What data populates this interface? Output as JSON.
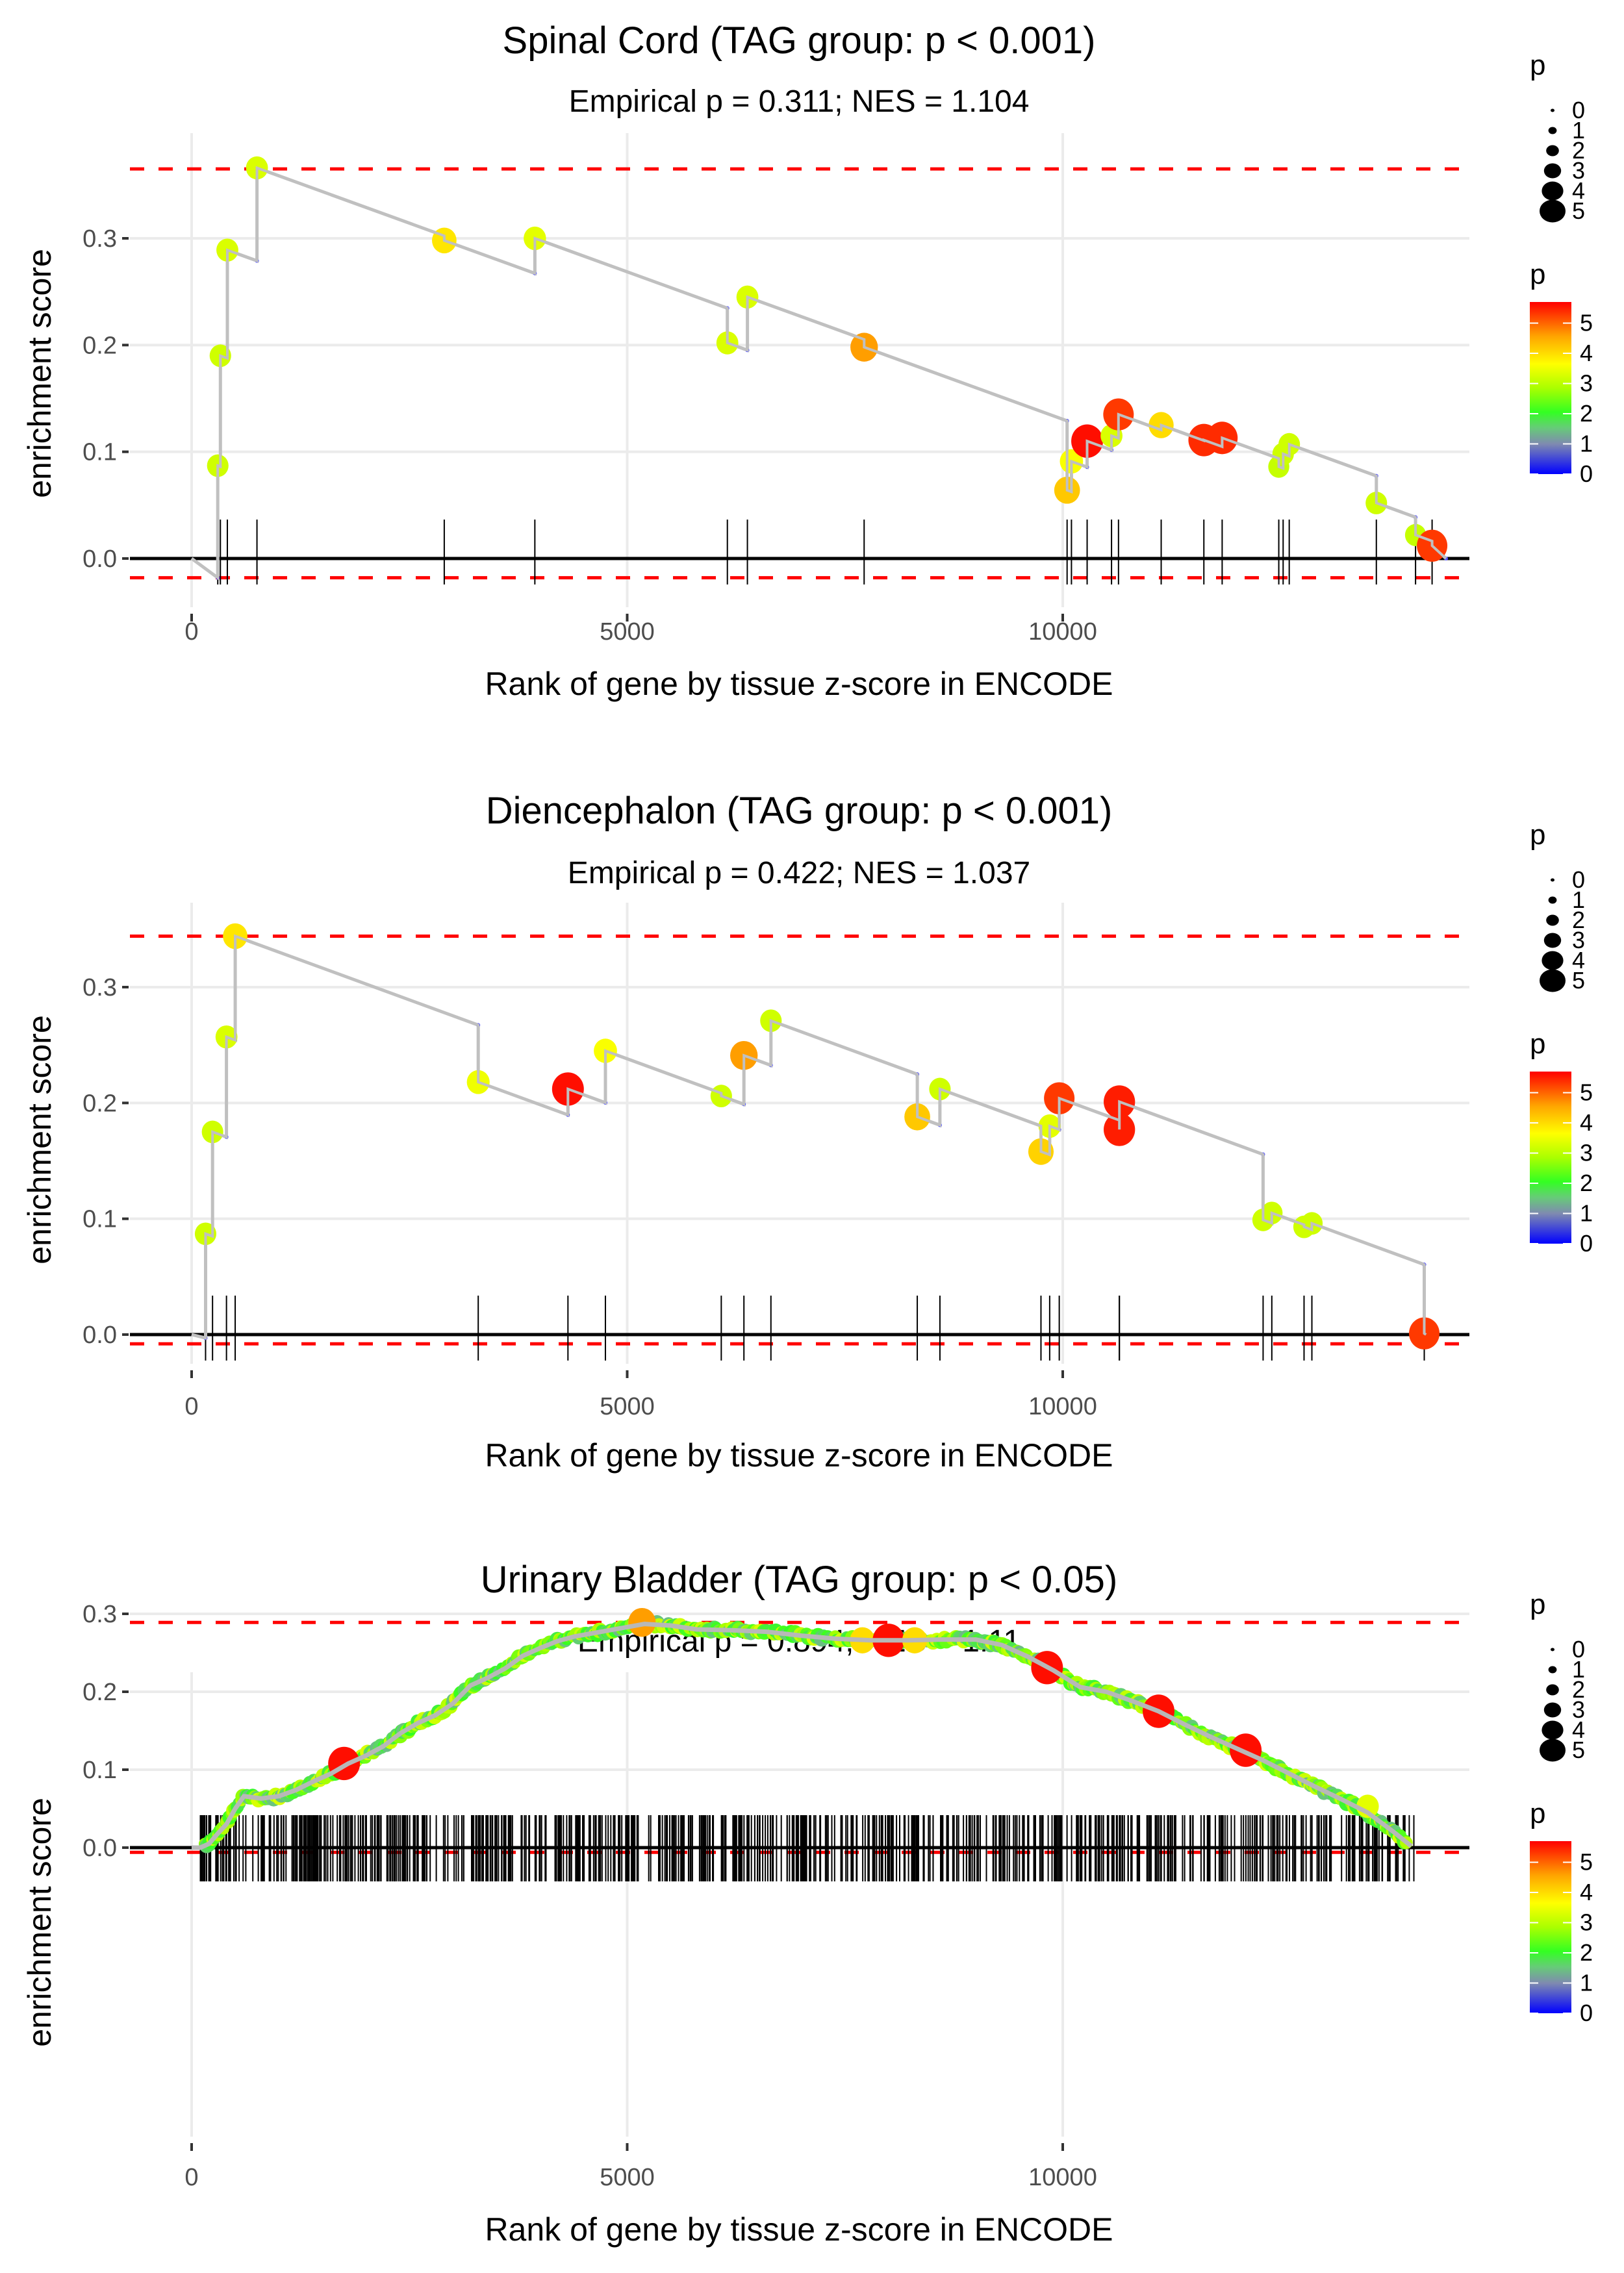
{
  "chart_data": [
    {
      "type": "scatter",
      "title": "Spinal Cord (TAG group: p < 0.001)",
      "subtitle": "Empirical p = 0.311; NES = 1.104",
      "xlabel": "Rank of gene by tissue z-score in ENCODE",
      "ylabel": "enrichment score",
      "xlim": [
        -750,
        14500
      ],
      "ylim": [
        -0.035,
        0.375
      ],
      "xticks": [
        0,
        5000,
        10000
      ],
      "xtick_labels": [
        "0",
        "5000",
        "10000"
      ],
      "yticks": [
        0.0,
        0.1,
        0.2,
        0.3
      ],
      "ytick_labels": [
        "0.0",
        "0.1",
        "0.2",
        "0.3"
      ],
      "grid": true,
      "upper_threshold": 0.365,
      "lower_threshold": -0.018,
      "hits": [
        {
          "rank": 300,
          "es": 0.087,
          "p": 3.2
        },
        {
          "rank": 330,
          "es": 0.19,
          "p": 3.2
        },
        {
          "rank": 410,
          "es": 0.289,
          "p": 3.3
        },
        {
          "rank": 750,
          "es": 0.366,
          "p": 3.3
        },
        {
          "rank": 2900,
          "es": 0.298,
          "p": 3.9
        },
        {
          "rank": 3940,
          "es": 0.3,
          "p": 3.4
        },
        {
          "rank": 6150,
          "es": 0.202,
          "p": 3.3
        },
        {
          "rank": 6380,
          "es": 0.245,
          "p": 3.3
        },
        {
          "rank": 7720,
          "es": 0.198,
          "p": 4.6
        },
        {
          "rank": 10050,
          "es": 0.064,
          "p": 4.2
        },
        {
          "rank": 10100,
          "es": 0.091,
          "p": 3.6
        },
        {
          "rank": 10280,
          "es": 0.11,
          "p": 5.6
        },
        {
          "rank": 10560,
          "es": 0.115,
          "p": 3.3
        },
        {
          "rank": 10640,
          "es": 0.135,
          "p": 5.3
        },
        {
          "rank": 11130,
          "es": 0.125,
          "p": 4.0
        },
        {
          "rank": 11620,
          "es": 0.111,
          "p": 5.4
        },
        {
          "rank": 11830,
          "es": 0.113,
          "p": 5.4
        },
        {
          "rank": 12480,
          "es": 0.086,
          "p": 3.1
        },
        {
          "rank": 12530,
          "es": 0.098,
          "p": 3.2
        },
        {
          "rank": 12600,
          "es": 0.107,
          "p": 3.2
        },
        {
          "rank": 13600,
          "es": 0.052,
          "p": 3.2
        },
        {
          "rank": 14050,
          "es": 0.022,
          "p": 3.1
        },
        {
          "rank": 14240,
          "es": 0.012,
          "p": 5.3
        }
      ],
      "end_rank": 14400
    },
    {
      "type": "scatter",
      "title": "Diencephalon (TAG group: p < 0.001)",
      "subtitle": "Empirical p = 0.422; NES = 1.037",
      "xlabel": "Rank of gene by tissue z-score in ENCODE",
      "ylabel": "enrichment score",
      "xlim": [
        -750,
        14500
      ],
      "ylim": [
        -0.025,
        0.36
      ],
      "xticks": [
        0,
        5000,
        10000
      ],
      "xtick_labels": [
        "0",
        "5000",
        "10000"
      ],
      "yticks": [
        0.0,
        0.1,
        0.2,
        0.3
      ],
      "ytick_labels": [
        "0.0",
        "0.1",
        "0.2",
        "0.3"
      ],
      "grid": true,
      "upper_threshold": 0.344,
      "lower_threshold": -0.008,
      "hits": [
        {
          "rank": 160,
          "es": 0.087,
          "p": 3.2
        },
        {
          "rank": 240,
          "es": 0.175,
          "p": 3.2
        },
        {
          "rank": 400,
          "es": 0.257,
          "p": 3.3
        },
        {
          "rank": 500,
          "es": 0.344,
          "p": 3.9
        },
        {
          "rank": 3290,
          "es": 0.218,
          "p": 3.5
        },
        {
          "rank": 4320,
          "es": 0.212,
          "p": 5.6
        },
        {
          "rank": 4750,
          "es": 0.245,
          "p": 3.6
        },
        {
          "rank": 6080,
          "es": 0.206,
          "p": 3.2
        },
        {
          "rank": 6340,
          "es": 0.241,
          "p": 4.6
        },
        {
          "rank": 6650,
          "es": 0.271,
          "p": 3.2
        },
        {
          "rank": 8330,
          "es": 0.188,
          "p": 4.2
        },
        {
          "rank": 8590,
          "es": 0.212,
          "p": 3.2
        },
        {
          "rank": 9750,
          "es": 0.158,
          "p": 4.1
        },
        {
          "rank": 9850,
          "es": 0.18,
          "p": 3.4
        },
        {
          "rank": 9960,
          "es": 0.204,
          "p": 5.3
        },
        {
          "rank": 10650,
          "es": 0.177,
          "p": 5.5
        },
        {
          "rank": 10650,
          "es": 0.201,
          "p": 5.5
        },
        {
          "rank": 12300,
          "es": 0.099,
          "p": 3.2
        },
        {
          "rank": 12400,
          "es": 0.105,
          "p": 3.2
        },
        {
          "rank": 12770,
          "es": 0.093,
          "p": 3.2
        },
        {
          "rank": 12860,
          "es": 0.096,
          "p": 3.2
        },
        {
          "rank": 14150,
          "es": 0.001,
          "p": 5.3
        }
      ],
      "end_rank": 14170
    },
    {
      "type": "scatter",
      "title": "Urinary Bladder (TAG group: p < 0.05)",
      "subtitle": "Empirical p = 0.894; NES = 1.11",
      "xlabel": "Rank of gene by tissue z-score in ENCODE",
      "ylabel": "enrichment score",
      "xlim": [
        -750,
        14500
      ],
      "ylim": [
        -0.022,
        0.305
      ],
      "xticks": [
        0,
        5000,
        10000
      ],
      "xtick_labels": [
        "0",
        "5000",
        "10000"
      ],
      "yticks": [
        0.0,
        0.1,
        0.2,
        0.3
      ],
      "ytick_labels": [
        "0.0",
        "0.1",
        "0.2",
        "0.3"
      ],
      "grid": true,
      "upper_threshold": 0.289,
      "lower_threshold": -0.006,
      "curve": [
        [
          0,
          0.0
        ],
        [
          100,
          0.0
        ],
        [
          200,
          0.005
        ],
        [
          300,
          0.018
        ],
        [
          400,
          0.03
        ],
        [
          500,
          0.05
        ],
        [
          600,
          0.066
        ],
        [
          800,
          0.063
        ],
        [
          1000,
          0.066
        ],
        [
          1200,
          0.074
        ],
        [
          1400,
          0.085
        ],
        [
          1600,
          0.095
        ],
        [
          1800,
          0.108
        ],
        [
          2000,
          0.118
        ],
        [
          2200,
          0.13
        ],
        [
          2400,
          0.147
        ],
        [
          2600,
          0.16
        ],
        [
          2800,
          0.17
        ],
        [
          3000,
          0.185
        ],
        [
          3200,
          0.208
        ],
        [
          3400,
          0.218
        ],
        [
          3600,
          0.23
        ],
        [
          3800,
          0.246
        ],
        [
          4000,
          0.256
        ],
        [
          4200,
          0.265
        ],
        [
          4400,
          0.271
        ],
        [
          4600,
          0.275
        ],
        [
          4800,
          0.279
        ],
        [
          5000,
          0.283
        ],
        [
          5200,
          0.287
        ],
        [
          5500,
          0.285
        ],
        [
          5800,
          0.28
        ],
        [
          6200,
          0.279
        ],
        [
          6600,
          0.277
        ],
        [
          7000,
          0.272
        ],
        [
          7400,
          0.268
        ],
        [
          7800,
          0.266
        ],
        [
          8200,
          0.266
        ],
        [
          8600,
          0.267
        ],
        [
          9000,
          0.267
        ],
        [
          9300,
          0.26
        ],
        [
          9600,
          0.245
        ],
        [
          9900,
          0.227
        ],
        [
          10200,
          0.206
        ],
        [
          10500,
          0.2
        ],
        [
          10800,
          0.188
        ],
        [
          11100,
          0.175
        ],
        [
          11400,
          0.158
        ],
        [
          11700,
          0.142
        ],
        [
          12000,
          0.127
        ],
        [
          12300,
          0.112
        ],
        [
          12600,
          0.095
        ],
        [
          12900,
          0.078
        ],
        [
          13200,
          0.062
        ],
        [
          13500,
          0.045
        ],
        [
          13800,
          0.02
        ],
        [
          14000,
          0.002
        ]
      ],
      "highlight_hits": [
        {
          "rank": 1750,
          "es": 0.108,
          "p": 5.6
        },
        {
          "rank": 5170,
          "es": 0.289,
          "p": 4.6
        },
        {
          "rank": 7700,
          "es": 0.266,
          "p": 4.0
        },
        {
          "rank": 8000,
          "es": 0.266,
          "p": 5.6
        },
        {
          "rank": 8300,
          "es": 0.266,
          "p": 4.0
        },
        {
          "rank": 9820,
          "es": 0.231,
          "p": 5.6
        },
        {
          "rank": 11100,
          "es": 0.175,
          "p": 5.6
        },
        {
          "rank": 12100,
          "es": 0.125,
          "p": 5.6
        },
        {
          "rank": 13500,
          "es": 0.053,
          "p": 3.4
        }
      ],
      "n_hits_approx": 700,
      "hit_rank_range": [
        100,
        14050
      ]
    }
  ],
  "legends": {
    "size_legend": {
      "title": "p",
      "values": [
        0,
        1,
        2,
        3,
        4,
        5
      ]
    },
    "color_legend": {
      "title": "p",
      "ticks": [
        0,
        1,
        2,
        3,
        4,
        5
      ],
      "range": [
        0,
        5.7
      ]
    }
  },
  "colors": {
    "threshold_line": "#ff0000",
    "es_line": "#c0c0c0",
    "zero_line": "#000000",
    "grid": "#ebebeb",
    "gradient": [
      "#0000ff",
      "#7f7fbf",
      "#66cc66",
      "#33ff00",
      "#ccff00",
      "#ffff00",
      "#ffcc00",
      "#ff6600",
      "#ff0000"
    ]
  }
}
